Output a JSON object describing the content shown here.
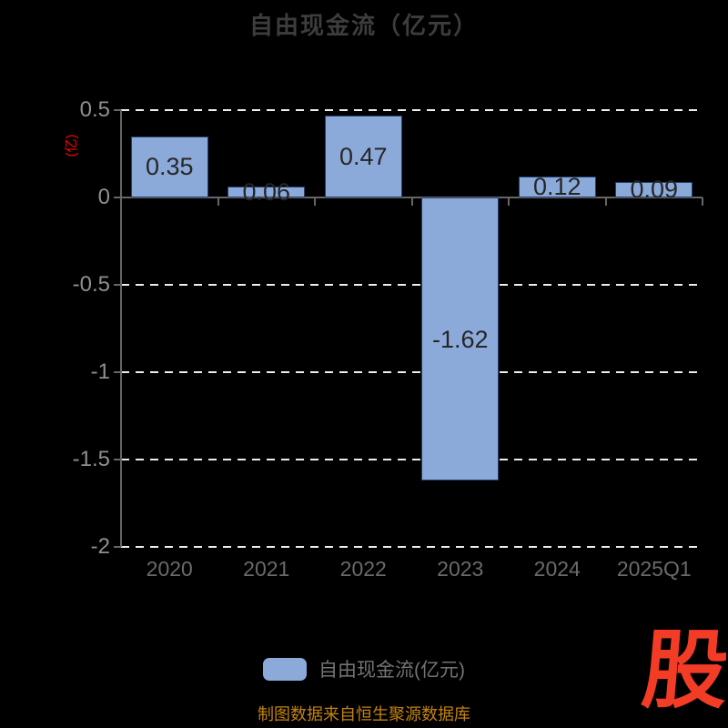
{
  "title": "自由现金流（亿元）",
  "y_axis_unit": "(亿)",
  "legend": {
    "label": "自由现金流(亿元)"
  },
  "source_note": "制图数据来自恒生聚源数据库",
  "logo_text": "股",
  "colors": {
    "background": "#000000",
    "title": "#3d3d3d",
    "unit_label": "#ff0000",
    "bar_fill": "#8caad9",
    "bar_border": "#23406f",
    "grid": "#ededed",
    "axis": "#666666",
    "value_label": "#262626",
    "y_tick_label": "#8f8f8f",
    "x_tick_label": "#6a6a6a",
    "source": "#c3830e",
    "logo": "#f23c26"
  },
  "chart_data": {
    "type": "bar",
    "title": "自由现金流（亿元）",
    "ylabel": "(亿)",
    "categories": [
      "2020",
      "2021",
      "2022",
      "2023",
      "2024",
      "2025Q1"
    ],
    "values": [
      0.35,
      0.06,
      0.47,
      -1.62,
      0.12,
      0.09
    ],
    "value_labels": [
      "0.35",
      "0.06",
      "0.47",
      "-1.62",
      "0.12",
      "0.09"
    ],
    "series": [
      {
        "name": "自由现金流(亿元)",
        "values": [
          0.35,
          0.06,
          0.47,
          -1.62,
          0.12,
          0.09
        ]
      }
    ],
    "ylim": [
      -2,
      0.5
    ],
    "yticks": [
      0.5,
      0,
      -0.5,
      -1,
      -1.5,
      -2
    ],
    "ytick_labels": [
      "0.5",
      "0",
      "-0.5",
      "-1",
      "-1.5",
      "-2"
    ],
    "grid": "horizontal-dashed-white",
    "legend_position": "bottom"
  }
}
